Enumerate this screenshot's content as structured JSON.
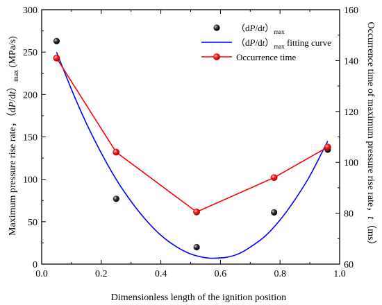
{
  "chart_data": {
    "type": "scatter",
    "x_label": "Dimensionless length of the ignition position",
    "y_left_label": "Maximum pressure rise rate，(dP/dt) max (MPa/s)",
    "y_right_label": "Occurrence time of maximum pressure rise rate，t (ms)",
    "xlim": [
      0.0,
      1.0
    ],
    "ylim_left": [
      0,
      300
    ],
    "ylim_right": [
      60,
      160
    ],
    "x_ticks": [
      "0.0",
      "0.2",
      "0.4",
      "0.6",
      "0.8",
      "1.0"
    ],
    "y_left_ticks": [
      "0",
      "50",
      "100",
      "150",
      "200",
      "250",
      "300"
    ],
    "y_right_ticks": [
      "60",
      "80",
      "100",
      "120",
      "140",
      "160"
    ],
    "legend_position": "top-right",
    "series": [
      {
        "name": "（dP/dt）max",
        "kind": "scatter",
        "axis": "left",
        "color": "#000000",
        "x": [
          0.05,
          0.25,
          0.52,
          0.78,
          0.96
        ],
        "y": [
          263,
          77,
          20,
          61,
          135
        ]
      },
      {
        "name": "（dP/dt）max fitting curve",
        "kind": "line",
        "axis": "left",
        "color": "#0000ff",
        "x": [
          0.05,
          0.1,
          0.15,
          0.2,
          0.25,
          0.3,
          0.35,
          0.4,
          0.45,
          0.5,
          0.55,
          0.58,
          0.62,
          0.66,
          0.7,
          0.75,
          0.8,
          0.85,
          0.9,
          0.96
        ],
        "y": [
          250,
          206,
          166,
          131,
          100,
          74,
          52,
          34,
          21,
          12,
          7.5,
          7,
          8,
          12,
          20,
          33,
          52,
          76,
          104,
          145
        ]
      },
      {
        "name": "Occurrence time",
        "kind": "line-marker",
        "axis": "right",
        "color": "#ff0000",
        "x": [
          0.05,
          0.25,
          0.52,
          0.78,
          0.96
        ],
        "y": [
          141,
          104,
          80.5,
          94,
          106
        ]
      }
    ],
    "legend": [
      {
        "label_main": "（d",
        "label_italic": "P",
        "label_mid": "/d",
        "label_italic2": "t",
        "label_end": "）",
        "label_sub": "max",
        "label_tail": "",
        "kind": "scatter"
      },
      {
        "label_main": "（d",
        "label_italic": "P",
        "label_mid": "/d",
        "label_italic2": "t",
        "label_end": "）",
        "label_sub": "max",
        "label_tail": " fitting curve",
        "kind": "line"
      },
      {
        "label_main": "Occurrence time",
        "label_italic": "",
        "label_mid": "",
        "label_italic2": "",
        "label_end": "",
        "label_sub": "",
        "label_tail": "",
        "kind": "line-marker"
      }
    ]
  }
}
